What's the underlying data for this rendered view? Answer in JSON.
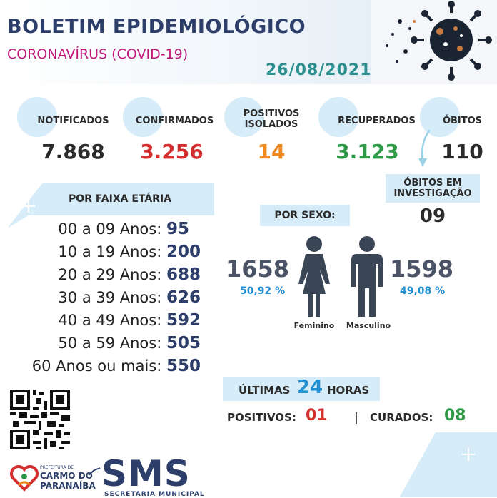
{
  "header": {
    "title": "BOLETIM EPIDEMIOLÓGICO",
    "subtitle": "CORONAVÍRUS (COVID-19)",
    "date": "26/08/2021"
  },
  "stats": {
    "notificados": {
      "label": "NOTIFICADOS",
      "value": "7.868",
      "color": "#2b2b2b"
    },
    "confirmados": {
      "label": "CONFIRMADOS",
      "value": "3.256",
      "color": "#d32f2f"
    },
    "positivos_isolados": {
      "label_line1": "POSITIVOS",
      "label_line2": "ISOLADOS",
      "value": "14",
      "color": "#f0891e"
    },
    "recuperados": {
      "label": "RECUPERADOS",
      "value": "3.123",
      "color": "#2e9a48"
    },
    "obitos": {
      "label": "ÓBITOS",
      "value": "110",
      "color": "#2b2b2b"
    },
    "obitos_investigacao": {
      "label_line1": "ÓBITOS EM",
      "label_line2": "INVESTIGAÇÃO",
      "value": "09"
    }
  },
  "faixa_etaria": {
    "title": "POR FAIXA ETÁRIA",
    "rows": [
      {
        "label": "00 a 09 Anos:",
        "value": "95"
      },
      {
        "label": "10 a 19 Anos:",
        "value": "200"
      },
      {
        "label": "20 a 29 Anos:",
        "value": "688"
      },
      {
        "label": "30 a 39 Anos:",
        "value": "626"
      },
      {
        "label": "40 a 49 Anos:",
        "value": "592"
      },
      {
        "label": "50 a 59 Anos:",
        "value": "505"
      },
      {
        "label": "60 Anos ou mais:",
        "value": "550"
      }
    ]
  },
  "sexo": {
    "title": "POR SEXO:",
    "feminino": {
      "label": "Feminino",
      "value": "1658",
      "percent": "50,92 %"
    },
    "masculino": {
      "label": "Masculino",
      "value": "1598",
      "percent": "49,08 %"
    }
  },
  "ultimas": {
    "prefix": "ÚLTIMAS",
    "hours": "24",
    "suffix": "HORAS",
    "positivos_label": "POSITIVOS:",
    "positivos_value": "01",
    "separator": "|",
    "curados_label": "CURADOS:",
    "curados_value": "08"
  },
  "footer": {
    "prefeitura": "PREFEITURA DE",
    "city_line1": "CARMO DO",
    "city_line2": "PARANAÍBA",
    "sms": "SMS",
    "secretaria": "SECRETARIA MUNICIPAL"
  },
  "colors": {
    "navy": "#2c3e69",
    "magenta": "#c2177a",
    "teal": "#2c8f8f",
    "light_blue": "#d6ecf8",
    "percent_blue": "#2290d0"
  }
}
